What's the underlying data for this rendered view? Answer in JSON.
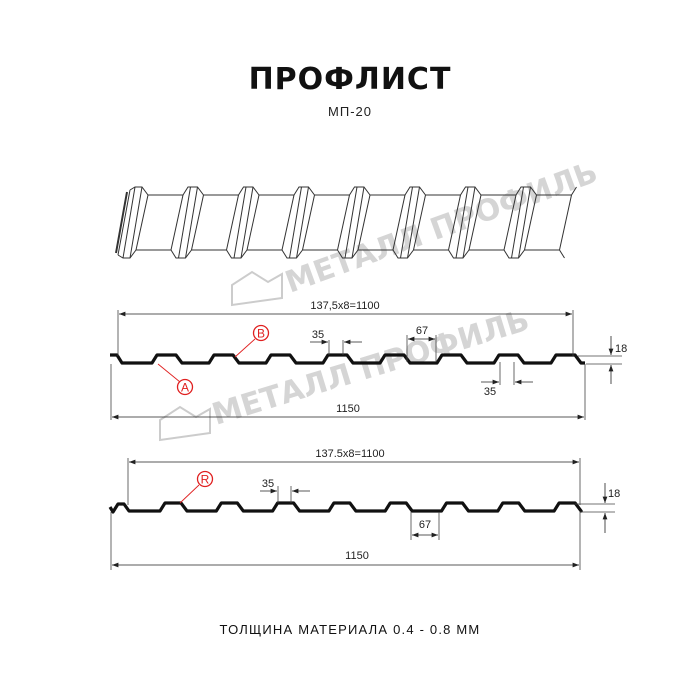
{
  "title": "ПРОФЛИСТ",
  "subtitle": "МП-20",
  "watermark": "МЕТАЛЛ ПРОФИЛЬ",
  "footer": "ТОЛЩИНА МАТЕРИАЛА 0.4 - 0.8 ММ",
  "profile_a": {
    "pitch_label": "137,5x8=1100",
    "total_label": "1150",
    "crest_label": "35",
    "bottom_label": "35",
    "gap_label": "67",
    "height_label": "18",
    "marker_a": "A",
    "marker_b": "B"
  },
  "profile_r": {
    "pitch_label": "137.5x8=1100",
    "total_label": "1150",
    "crest_label": "35",
    "gap_label": "67",
    "height_label": "18",
    "marker_r": "R"
  },
  "colors": {
    "marker": "#e02020",
    "line": "#111111",
    "watermark": "#c8c8c8"
  }
}
